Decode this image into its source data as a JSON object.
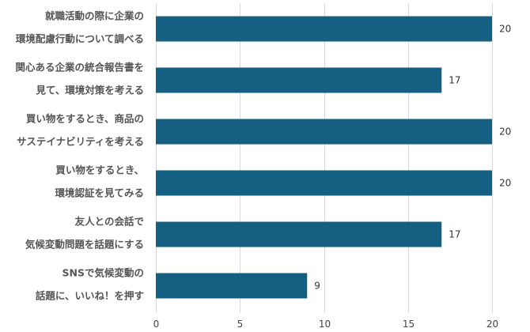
{
  "chart_data": {
    "type": "bar",
    "orientation": "horizontal",
    "categories": [
      [
        "就職活動の際に企業の",
        "環境配慮行動について調べる"
      ],
      [
        "関心ある企業の統合報告書を",
        "見て、環境対策を考える"
      ],
      [
        "買い物をするとき、商品の",
        "サステイナビリティを考える"
      ],
      [
        "買い物をするとき、",
        "環境認証を見てみる"
      ],
      [
        "友人との会話で",
        "気候変動問題を話題にする"
      ],
      [
        "SNSで気候変動の",
        "話題に、いいね！を押す"
      ]
    ],
    "values": [
      20,
      17,
      20,
      20,
      17,
      9
    ],
    "xlim": [
      0,
      20
    ],
    "xticks": [
      "0",
      "5",
      "10",
      "15",
      "20"
    ],
    "grid": true,
    "bar_color": "#156082"
  }
}
